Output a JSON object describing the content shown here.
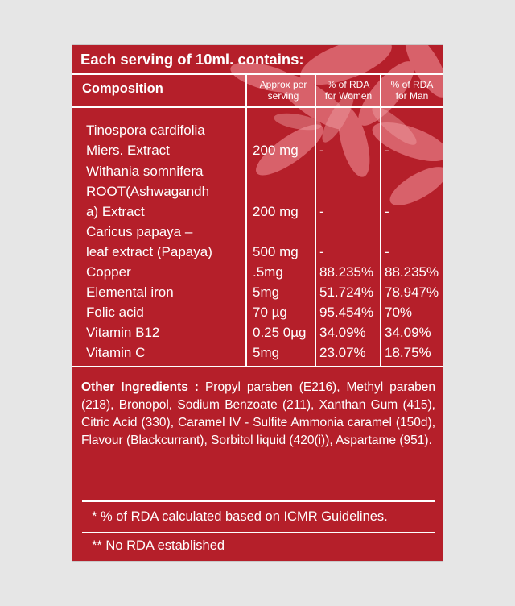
{
  "header": {
    "title": "Each serving of 10ml. contains:"
  },
  "columns": {
    "composition": "Composition",
    "serving": [
      "Approx per",
      "serving"
    ],
    "women": [
      "% of RDA",
      "for Women"
    ],
    "men": [
      "% of RDA",
      "for Man"
    ]
  },
  "rows": [
    {
      "name": [
        "Tinospora cardifolia",
        "Miers. Extract"
      ],
      "serving": "200 mg",
      "women": "-",
      "men": "-"
    },
    {
      "name": [
        "Withania somnifera",
        "ROOT(Ashwagandh",
        "a) Extract"
      ],
      "serving": "200 mg",
      "women": "-",
      "men": "-"
    },
    {
      "name": [
        "Caricus papaya –",
        "leaf extract (Papaya)"
      ],
      "serving": "500 mg",
      "women": "-",
      "men": "-"
    },
    {
      "name": [
        "Copper"
      ],
      "serving": ".5mg",
      "women": "88.235%",
      "men": "88.235%"
    },
    {
      "name": [
        "Elemental iron"
      ],
      "serving": "5mg",
      "women": "51.724%",
      "men": "78.947%"
    },
    {
      "name": [
        "Folic acid"
      ],
      "serving": "70 µg",
      "women": "95.454%",
      "men": "70%"
    },
    {
      "name": [
        "Vitamin B12"
      ],
      "serving": "0.25 0µg",
      "women": "34.09%",
      "men": "34.09%"
    },
    {
      "name": [
        "Vitamin C"
      ],
      "serving": "5mg",
      "women": "23.07%",
      "men": "18.75%"
    }
  ],
  "other_ingredients": {
    "label": "Other Ingredients :",
    "text": "Propyl paraben (E216), Methyl paraben (218), Bronopol, Sodium Benzoate (211), Xanthan Gum (415), Citric Acid (330), Caramel IV - Sulfite Ammonia caramel (150d), Flavour (Blackcurrant), Sorbitol liquid (420(i)), Aspartame (951)."
  },
  "notes": {
    "rda": "* % of RDA calculated based on ICMR Guidelines.",
    "no_rda": "** No RDA established"
  },
  "colors": {
    "background": "#b51f2a",
    "page": "#e6e6e6",
    "petal": "#e2727a"
  }
}
